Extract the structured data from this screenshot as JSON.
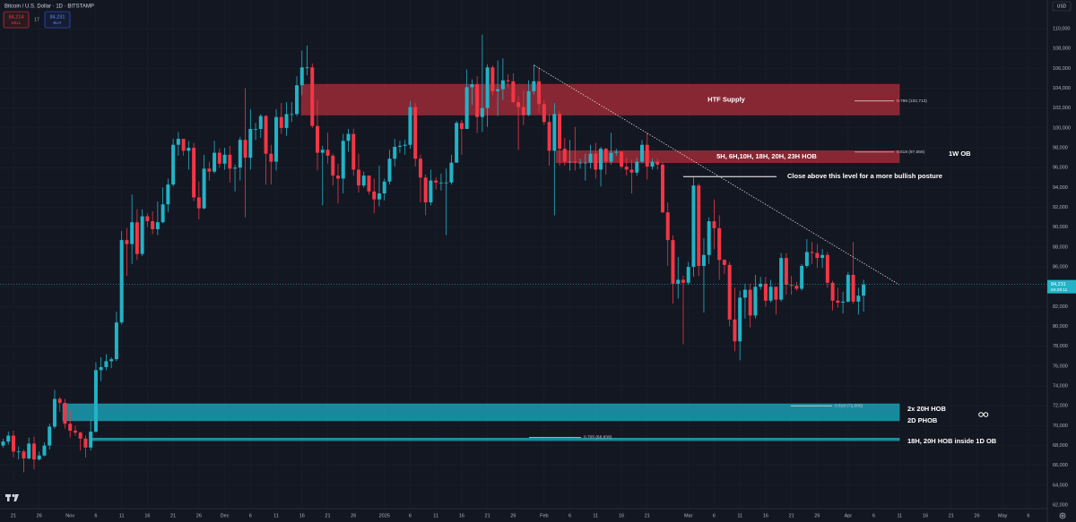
{
  "header": {
    "symbol": "Bitcoin / U.S. Dollar · 1D · BITSTAMP",
    "sell_price": "84,214",
    "sell": "SELL",
    "spread": "17",
    "buy_price": "84,231",
    "buy": "BUY",
    "currency": "USD",
    "countdown": "04:29:11"
  },
  "chart_data": {
    "type": "candlestick",
    "categories": [
      null,
      null,
      "21",
      null,
      null,
      null,
      null,
      "26",
      null,
      null,
      null,
      null,
      null,
      "Nov",
      null,
      null,
      null,
      null,
      "6",
      null,
      null,
      null,
      null,
      "11",
      null,
      null,
      null,
      null,
      "16",
      null,
      null,
      null,
      null,
      "21",
      null,
      null,
      null,
      null,
      "26",
      null,
      null,
      null,
      null,
      "Dec",
      null,
      null,
      null,
      null,
      "6",
      null,
      null,
      null,
      null,
      "11",
      null,
      null,
      null,
      null,
      "16",
      null,
      null,
      null,
      null,
      "21",
      null,
      null,
      null,
      null,
      "26",
      null,
      null,
      null,
      null,
      null,
      "2025",
      null,
      null,
      null,
      null,
      "6",
      null,
      null,
      null,
      null,
      "11",
      null,
      null,
      null,
      null,
      "16",
      null,
      null,
      null,
      null,
      "21",
      null,
      null,
      null,
      null,
      "26",
      null,
      null,
      null,
      null,
      null,
      "Feb",
      null,
      null,
      null,
      null,
      "6",
      null,
      null,
      null,
      null,
      "11",
      null,
      null,
      null,
      null,
      "16",
      null,
      null,
      null,
      null,
      "21",
      null,
      null,
      null,
      null,
      null,
      null,
      null,
      "Mar",
      null,
      null,
      null,
      null,
      "6",
      null,
      null,
      null,
      null,
      "11",
      null,
      null,
      null,
      null,
      "16",
      null,
      null,
      null,
      null,
      "21",
      null,
      null,
      null,
      null,
      "26",
      null,
      null,
      null,
      null,
      null,
      "Apr",
      null,
      null,
      null,
      null,
      "6",
      null,
      null,
      null,
      null,
      "11",
      null,
      null,
      null,
      null,
      "16",
      null,
      null,
      null,
      null,
      "21",
      null,
      null,
      null,
      null,
      "26",
      null,
      null,
      null,
      null,
      "May",
      null,
      null,
      null,
      null,
      "6",
      null,
      null,
      null
    ],
    "open": [
      68000,
      68400,
      69000,
      67400,
      67400,
      66700,
      68200,
      66600,
      67000,
      68000,
      69900,
      72700,
      72300,
      70200,
      69500,
      69300,
      68700,
      67800,
      69400,
      75600,
      75900,
      76500,
      76700,
      80400,
      88700,
      88300,
      90500,
      87300,
      91100,
      90600,
      89800,
      90500,
      92300,
      94300,
      98300,
      98900,
      97700,
      98000,
      93000,
      91900,
      95900,
      95600,
      97500,
      96400,
      97300,
      95900,
      96000,
      98800,
      97000,
      99900,
      99900,
      101200,
      97400,
      96600,
      101100,
      100000,
      101400,
      101400,
      104300,
      106100,
      106100,
      100200,
      97500,
      97800,
      97200,
      95200,
      94900,
      98700,
      99400,
      95800,
      94200,
      95200,
      93600,
      92800,
      93400,
      94600,
      96900,
      98100,
      98200,
      98300,
      102100,
      96900,
      95000,
      92500,
      94700,
      94500,
      94500,
      94500,
      96500,
      100500,
      99900,
      104100,
      104400,
      101100,
      102000,
      106100,
      103700,
      103900,
      104800,
      104700,
      102600,
      102100,
      101300,
      103700,
      104700,
      102400,
      100600,
      97700,
      101400,
      97900,
      96600,
      96600,
      96500,
      96500,
      96500,
      97400,
      95800,
      97900,
      96600,
      97500,
      97600,
      96100,
      95800,
      95500,
      96600,
      98300,
      96100,
      96600,
      96300,
      91500,
      88700,
      84300,
      84700,
      84400,
      86000,
      94200,
      86100,
      87200,
      90600,
      89900,
      86700,
      86200,
      80700,
      78500,
      82900,
      83700,
      81100,
      84000,
      84300,
      82600,
      84000,
      82700,
      86900,
      84200,
      84100,
      83800,
      86100,
      87500,
      87400,
      86900,
      87200,
      84400,
      82600,
      82400,
      82500,
      85200,
      82500,
      83100,
      null,
      null,
      null,
      null,
      null,
      null,
      null,
      null,
      null,
      null,
      null,
      null,
      null,
      null,
      null,
      null,
      null,
      null,
      null,
      null,
      null,
      null,
      null,
      null,
      null,
      null,
      null,
      null,
      null,
      null,
      null,
      null,
      null,
      null,
      null
    ],
    "high": [
      68700,
      69400,
      69500,
      67900,
      67600,
      68800,
      68900,
      67400,
      68300,
      70200,
      73600,
      72900,
      72700,
      71600,
      70000,
      69400,
      69000,
      70600,
      76400,
      76900,
      77200,
      76900,
      81500,
      89600,
      89900,
      93300,
      91800,
      91800,
      91400,
      91600,
      92600,
      94000,
      94900,
      98900,
      99600,
      98800,
      98700,
      98500,
      94600,
      97300,
      96600,
      98700,
      97900,
      98000,
      98200,
      96300,
      99100,
      104000,
      101900,
      100500,
      101400,
      101300,
      98300,
      101900,
      102500,
      102600,
      102600,
      105200,
      107800,
      108300,
      106500,
      102800,
      98200,
      99500,
      97400,
      96400,
      99400,
      99900,
      99900,
      97400,
      95600,
      95200,
      94900,
      96200,
      94900,
      97800,
      98900,
      98700,
      98800,
      102700,
      102500,
      97300,
      95300,
      95800,
      95000,
      95400,
      95900,
      97300,
      100700,
      100800,
      105900,
      104900,
      105200,
      109400,
      106400,
      106300,
      106800,
      107000,
      105400,
      105500,
      103200,
      103800,
      104800,
      106400,
      106100,
      102800,
      101400,
      102500,
      101700,
      99000,
      98800,
      100100,
      96900,
      97400,
      98300,
      98500,
      98100,
      98000,
      99500,
      97900,
      97700,
      97000,
      96800,
      97000,
      98800,
      99500,
      96900,
      96900,
      96500,
      92500,
      89200,
      87000,
      85100,
      86500,
      95000,
      94400,
      88900,
      91000,
      92800,
      91200,
      86800,
      86500,
      83900,
      83600,
      84300,
      84300,
      85200,
      85000,
      85000,
      84700,
      84000,
      87400,
      87400,
      85100,
      84500,
      86300,
      88800,
      88500,
      88300,
      87800,
      87500,
      84600,
      83900,
      83500,
      85500,
      88500,
      83900,
      84700,
      null,
      null,
      null,
      null,
      null,
      null,
      null,
      null,
      null,
      null,
      null,
      null,
      null,
      null,
      null,
      null,
      null,
      null,
      null,
      null,
      null,
      null,
      null,
      null,
      null,
      null,
      null,
      null,
      null,
      null,
      null,
      null,
      null,
      null,
      null
    ],
    "low": [
      67800,
      68100,
      66800,
      66600,
      65300,
      66600,
      65600,
      66500,
      66900,
      67600,
      69700,
      71400,
      69700,
      68800,
      69000,
      67500,
      66800,
      67500,
      69300,
      74500,
      75600,
      75800,
      76500,
      80200,
      85100,
      86300,
      86700,
      87100,
      90000,
      89300,
      89200,
      90400,
      91500,
      94100,
      97200,
      97200,
      95800,
      92600,
      90800,
      91800,
      94700,
      95400,
      96000,
      95800,
      94500,
      93600,
      94700,
      91000,
      95800,
      98800,
      99000,
      94300,
      94300,
      95700,
      99400,
      99200,
      100600,
      101200,
      103300,
      105300,
      100000,
      95700,
      92200,
      96400,
      94200,
      92400,
      93400,
      97600,
      95200,
      93500,
      94000,
      93300,
      91400,
      92100,
      92700,
      94300,
      96100,
      97500,
      97300,
      97900,
      96100,
      92500,
      91200,
      92200,
      93800,
      93700,
      89200,
      94300,
      96500,
      97300,
      99900,
      102300,
      99500,
      99600,
      100100,
      103300,
      101200,
      102800,
      104100,
      102500,
      97800,
      100300,
      101200,
      103400,
      101500,
      100300,
      96200,
      91200,
      96200,
      96200,
      95700,
      95700,
      95900,
      94700,
      95900,
      94900,
      94100,
      95300,
      96300,
      97200,
      95900,
      95200,
      93400,
      95200,
      96400,
      94800,
      95800,
      95800,
      91400,
      86100,
      82300,
      82800,
      78200,
      84200,
      85000,
      85100,
      81400,
      86300,
      87800,
      84700,
      85300,
      80000,
      77500,
      76600,
      80800,
      79900,
      80800,
      83700,
      82000,
      82400,
      81200,
      82500,
      83200,
      83200,
      83600,
      83600,
      85900,
      86300,
      85900,
      85900,
      83900,
      81600,
      81900,
      81300,
      82400,
      82300,
      81200,
      81500,
      null,
      null,
      null,
      null,
      null,
      null,
      null,
      null,
      null,
      null,
      null,
      null,
      null,
      null,
      null,
      null,
      null,
      null,
      null,
      null,
      null,
      null,
      null,
      null,
      null,
      null,
      null,
      null,
      null,
      null,
      null,
      null,
      null,
      null,
      null
    ],
    "close": [
      68400,
      69000,
      67400,
      67400,
      66700,
      68200,
      66600,
      67000,
      68000,
      69900,
      72700,
      72300,
      70200,
      69500,
      69300,
      68700,
      67800,
      69400,
      75600,
      75900,
      76500,
      76700,
      80400,
      88700,
      88300,
      90500,
      87300,
      91100,
      90600,
      89800,
      90500,
      92300,
      94300,
      98300,
      98900,
      97700,
      98000,
      93000,
      91900,
      95900,
      95600,
      97500,
      96400,
      97300,
      95900,
      96000,
      98800,
      97000,
      99900,
      99900,
      101200,
      97400,
      96600,
      101100,
      100000,
      101400,
      101400,
      104300,
      106100,
      106100,
      100200,
      97500,
      97800,
      97200,
      95200,
      94900,
      98700,
      99400,
      95800,
      94200,
      95200,
      93600,
      92800,
      93400,
      94600,
      96900,
      98100,
      98200,
      98300,
      102100,
      96900,
      95000,
      92500,
      94700,
      94500,
      94500,
      94500,
      96500,
      100500,
      99900,
      104100,
      104400,
      101100,
      102000,
      106100,
      103700,
      103900,
      104800,
      104700,
      102600,
      102100,
      101300,
      103700,
      104700,
      102400,
      100600,
      97700,
      101400,
      97900,
      96600,
      96600,
      96500,
      96500,
      96500,
      97400,
      95800,
      97900,
      96600,
      97500,
      97600,
      96100,
      95800,
      95500,
      96600,
      98300,
      96100,
      96600,
      96300,
      91500,
      88700,
      84300,
      84700,
      84400,
      86000,
      94200,
      86100,
      87200,
      90600,
      89900,
      86700,
      86200,
      80700,
      78500,
      82900,
      83700,
      81100,
      84000,
      84300,
      82600,
      84000,
      82700,
      86900,
      84200,
      84100,
      83800,
      86100,
      87500,
      87400,
      86900,
      87200,
      84400,
      82600,
      82400,
      82500,
      85200,
      82500,
      83100,
      84231,
      null,
      null,
      null,
      null,
      null,
      null,
      null,
      null,
      null,
      null,
      null,
      null,
      null,
      null,
      null,
      null,
      null,
      null,
      null,
      null,
      null,
      null,
      null,
      null,
      null,
      null,
      null,
      null,
      null,
      null,
      null,
      null,
      null,
      null,
      null
    ],
    "up_color": "#22b3c6",
    "down_color": "#f23645",
    "ylim": [
      61650,
      112890
    ],
    "yticks": [
      {
        "value": 62000,
        "label": "62,000"
      },
      {
        "value": 64000,
        "label": "64,000"
      },
      {
        "value": 66000,
        "label": "66,000"
      },
      {
        "value": 68000,
        "label": "68,000"
      },
      {
        "value": 70000,
        "label": "70,000"
      },
      {
        "value": 72000,
        "label": "72,000"
      },
      {
        "value": 74000,
        "label": "74,000"
      },
      {
        "value": 76000,
        "label": "76,000"
      },
      {
        "value": 78000,
        "label": "78,000"
      },
      {
        "value": 80000,
        "label": "80,000"
      },
      {
        "value": 82000,
        "label": "82,000"
      },
      {
        "value": 84000,
        "label": "84,000"
      },
      {
        "value": 86000,
        "label": "86,000"
      },
      {
        "value": 88000,
        "label": "88,000"
      },
      {
        "value": 90000,
        "label": "90,000"
      },
      {
        "value": 92000,
        "label": "92,000"
      },
      {
        "value": 94000,
        "label": "94,000"
      },
      {
        "value": 96000,
        "label": "96,000"
      },
      {
        "value": 98000,
        "label": "98,000"
      },
      {
        "value": 100000,
        "label": "100,000"
      },
      {
        "value": 102000,
        "label": "102,000"
      },
      {
        "value": 104000,
        "label": "104,000"
      },
      {
        "value": 106000,
        "label": "106,000"
      },
      {
        "value": 108000,
        "label": "108,000"
      },
      {
        "value": 110000,
        "label": "110,000"
      }
    ],
    "grid": true,
    "last_price": {
      "value": 84231,
      "label": "84,231"
    },
    "zones": [
      {
        "label": "HTF Supply",
        "low": 101300,
        "high": 104400,
        "color": "#9b2a36"
      },
      {
        "label": "5H, 6H,10H, 18H, 20H, 23H HOB",
        "low": 96500,
        "high": 97700,
        "color": "#9b2a36"
      },
      {
        "low": 70500,
        "high": 72200,
        "color": "#1a9db2"
      },
      {
        "low": 68500,
        "high": 68750,
        "color": "#1a9db2"
      }
    ],
    "fib_levels": [
      {
        "value": 102713,
        "label": "0.786 (102,713)"
      },
      {
        "value": 97566,
        "label": "0.618 (97,566)"
      },
      {
        "value": 72006,
        "label": "0.618 (72,006)"
      },
      {
        "value": 68839,
        "label": "0.705 (68,839)"
      }
    ],
    "level": {
      "value": 95100,
      "label": "Close above this level for a more bullish posture"
    },
    "trendline": [
      106300,
      84200
    ],
    "notes": [
      "1W OB",
      "2x 20H HOB",
      "2D PHOB",
      "18H, 20H HOB inside 1D OB"
    ]
  }
}
